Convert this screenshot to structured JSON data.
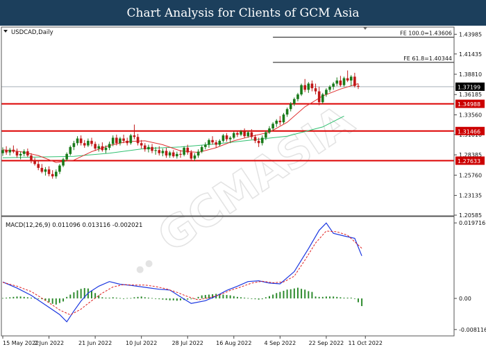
{
  "header": {
    "title": "Chart Analysis for Clients of GCM Asia"
  },
  "colors": {
    "header_bg": "#1c3f5c",
    "bull": "#1a7a1a",
    "bear": "#c01818",
    "ma_fast": "#e03030",
    "ma_slow": "#30c070",
    "sr_line": "#dd0000",
    "macd_line": "#1a36e0",
    "macd_signal": "#e02020",
    "macd_hist": "#2e8b2e",
    "price_label_bg": "#000000",
    "level_label_bg": "#cc0000"
  },
  "chart_data": [
    {
      "type": "candlestick",
      "symbol_label": "USDCAD,Daily",
      "x_labels": [
        "15 May 2022",
        "2 Jun 2022",
        "21 Jun 2022",
        "10 Jul 2022",
        "28 Jul 2022",
        "16 Aug 2022",
        "4 Sep 2022",
        "22 Sep 2022",
        "11 Oct 2022"
      ],
      "y_ticks": [
        "1.43985",
        "1.41435",
        "1.38810",
        "1.36185",
        "1.33560",
        "1.31010",
        "1.28385",
        "1.25760",
        "1.23135",
        "1.20585"
      ],
      "ylim": [
        1.20585,
        1.44825
      ],
      "current_price": "1.37199",
      "fibonacci": [
        {
          "label": "FE 100.0=1.43606",
          "value": 1.43606
        },
        {
          "label": "FE 61.8=1.40344",
          "value": 1.40344
        }
      ],
      "levels": [
        {
          "label": "1.34988",
          "value": 1.34988
        },
        {
          "label": "1.31466",
          "value": 1.31466
        },
        {
          "label": "1.27633",
          "value": 1.27633
        }
      ],
      "candles": [
        [
          1.286,
          1.2935,
          1.2825,
          1.29
        ],
        [
          1.29,
          1.295,
          1.284,
          1.287
        ],
        [
          1.287,
          1.293,
          1.283,
          1.2905
        ],
        [
          1.2905,
          1.296,
          1.286,
          1.288
        ],
        [
          1.288,
          1.292,
          1.28,
          1.283
        ],
        [
          1.283,
          1.288,
          1.278,
          1.285
        ],
        [
          1.285,
          1.291,
          1.282,
          1.2885
        ],
        [
          1.2885,
          1.292,
          1.281,
          1.283
        ],
        [
          1.283,
          1.286,
          1.273,
          1.276
        ],
        [
          1.276,
          1.28,
          1.27,
          1.272
        ],
        [
          1.272,
          1.276,
          1.264,
          1.267
        ],
        [
          1.267,
          1.272,
          1.26,
          1.262
        ],
        [
          1.262,
          1.268,
          1.257,
          1.265
        ],
        [
          1.265,
          1.269,
          1.256,
          1.259
        ],
        [
          1.259,
          1.264,
          1.253,
          1.256
        ],
        [
          1.256,
          1.265,
          1.253,
          1.262
        ],
        [
          1.262,
          1.272,
          1.259,
          1.27
        ],
        [
          1.27,
          1.28,
          1.268,
          1.278
        ],
        [
          1.278,
          1.287,
          1.276,
          1.285
        ],
        [
          1.285,
          1.296,
          1.283,
          1.294
        ],
        [
          1.294,
          1.302,
          1.29,
          1.299
        ],
        [
          1.299,
          1.308,
          1.296,
          1.305
        ],
        [
          1.305,
          1.309,
          1.296,
          1.299
        ],
        [
          1.299,
          1.303,
          1.293,
          1.296
        ],
        [
          1.296,
          1.305,
          1.294,
          1.302
        ],
        [
          1.302,
          1.306,
          1.295,
          1.298
        ],
        [
          1.298,
          1.301,
          1.289,
          1.292
        ],
        [
          1.292,
          1.298,
          1.288,
          1.295
        ],
        [
          1.295,
          1.3,
          1.288,
          1.29
        ],
        [
          1.29,
          1.296,
          1.286,
          1.293
        ],
        [
          1.293,
          1.301,
          1.29,
          1.298
        ],
        [
          1.298,
          1.309,
          1.295,
          1.306
        ],
        [
          1.306,
          1.31,
          1.296,
          1.299
        ],
        [
          1.299,
          1.307,
          1.296,
          1.305
        ],
        [
          1.305,
          1.31,
          1.299,
          1.302
        ],
        [
          1.302,
          1.306,
          1.296,
          1.299
        ],
        [
          1.299,
          1.311,
          1.297,
          1.309
        ],
        [
          1.309,
          1.323,
          1.304,
          1.307
        ],
        [
          1.307,
          1.311,
          1.296,
          1.299
        ],
        [
          1.299,
          1.303,
          1.292,
          1.296
        ],
        [
          1.296,
          1.299,
          1.288,
          1.291
        ],
        [
          1.291,
          1.297,
          1.287,
          1.294
        ],
        [
          1.294,
          1.298,
          1.286,
          1.289
        ],
        [
          1.289,
          1.294,
          1.284,
          1.29
        ],
        [
          1.29,
          1.295,
          1.283,
          1.286
        ],
        [
          1.286,
          1.292,
          1.282,
          1.289
        ],
        [
          1.289,
          1.293,
          1.28,
          1.283
        ],
        [
          1.283,
          1.289,
          1.28,
          1.287
        ],
        [
          1.287,
          1.29,
          1.28,
          1.282
        ],
        [
          1.282,
          1.288,
          1.279,
          1.285
        ],
        [
          1.285,
          1.29,
          1.28,
          1.284
        ],
        [
          1.284,
          1.295,
          1.282,
          1.293
        ],
        [
          1.293,
          1.297,
          1.284,
          1.287
        ],
        [
          1.287,
          1.29,
          1.276,
          1.279
        ],
        [
          1.279,
          1.286,
          1.276,
          1.283
        ],
        [
          1.283,
          1.291,
          1.28,
          1.288
        ],
        [
          1.288,
          1.296,
          1.286,
          1.294
        ],
        [
          1.294,
          1.3,
          1.291,
          1.297
        ],
        [
          1.297,
          1.305,
          1.293,
          1.303
        ],
        [
          1.303,
          1.308,
          1.297,
          1.3
        ],
        [
          1.3,
          1.303,
          1.293,
          1.297
        ],
        [
          1.297,
          1.304,
          1.295,
          1.302
        ],
        [
          1.302,
          1.311,
          1.3,
          1.309
        ],
        [
          1.309,
          1.312,
          1.301,
          1.304
        ],
        [
          1.304,
          1.308,
          1.299,
          1.306
        ],
        [
          1.306,
          1.314,
          1.304,
          1.312
        ],
        [
          1.312,
          1.315,
          1.307,
          1.31
        ],
        [
          1.31,
          1.316,
          1.308,
          1.314
        ],
        [
          1.314,
          1.318,
          1.306,
          1.308
        ],
        [
          1.308,
          1.315,
          1.306,
          1.313
        ],
        [
          1.313,
          1.317,
          1.304,
          1.307
        ],
        [
          1.307,
          1.31,
          1.299,
          1.302
        ],
        [
          1.302,
          1.306,
          1.294,
          1.299
        ],
        [
          1.299,
          1.309,
          1.296,
          1.306
        ],
        [
          1.306,
          1.315,
          1.303,
          1.313
        ],
        [
          1.313,
          1.321,
          1.311,
          1.318
        ],
        [
          1.318,
          1.326,
          1.315,
          1.324
        ],
        [
          1.324,
          1.33,
          1.32,
          1.328
        ],
        [
          1.328,
          1.334,
          1.322,
          1.326
        ],
        [
          1.326,
          1.338,
          1.324,
          1.336
        ],
        [
          1.336,
          1.345,
          1.333,
          1.343
        ],
        [
          1.343,
          1.352,
          1.34,
          1.35
        ],
        [
          1.35,
          1.358,
          1.347,
          1.356
        ],
        [
          1.356,
          1.364,
          1.353,
          1.362
        ],
        [
          1.362,
          1.376,
          1.36,
          1.374
        ],
        [
          1.374,
          1.382,
          1.365,
          1.368
        ],
        [
          1.368,
          1.378,
          1.364,
          1.376
        ],
        [
          1.376,
          1.38,
          1.366,
          1.37
        ],
        [
          1.37,
          1.376,
          1.362,
          1.366
        ],
        [
          1.366,
          1.372,
          1.348,
          1.352
        ],
        [
          1.352,
          1.364,
          1.35,
          1.362
        ],
        [
          1.362,
          1.37,
          1.359,
          1.368
        ],
        [
          1.368,
          1.374,
          1.365,
          1.372
        ],
        [
          1.372,
          1.378,
          1.368,
          1.376
        ],
        [
          1.376,
          1.384,
          1.373,
          1.38
        ],
        [
          1.38,
          1.386,
          1.372,
          1.374
        ],
        [
          1.374,
          1.385,
          1.372,
          1.383
        ],
        [
          1.383,
          1.393,
          1.378,
          1.38
        ],
        [
          1.38,
          1.387,
          1.373,
          1.385
        ],
        [
          1.385,
          1.39,
          1.371,
          1.373
        ],
        [
          1.373,
          1.376,
          1.369,
          1.372
        ]
      ],
      "ma_fast": [
        [
          0,
          1.2905
        ],
        [
          5,
          1.288
        ],
        [
          10,
          1.283
        ],
        [
          15,
          1.274
        ],
        [
          20,
          1.277
        ],
        [
          25,
          1.288
        ],
        [
          30,
          1.296
        ],
        [
          35,
          1.301
        ],
        [
          40,
          1.302
        ],
        [
          45,
          1.297
        ],
        [
          50,
          1.289
        ],
        [
          55,
          1.287
        ],
        [
          60,
          1.293
        ],
        [
          65,
          1.302
        ],
        [
          70,
          1.308
        ],
        [
          75,
          1.313
        ],
        [
          80,
          1.326
        ],
        [
          85,
          1.346
        ],
        [
          90,
          1.36
        ],
        [
          95,
          1.369
        ],
        [
          100,
          1.376
        ]
      ],
      "ma_slow": [
        [
          0,
          1.28
        ],
        [
          10,
          1.281
        ],
        [
          20,
          1.282
        ],
        [
          30,
          1.286
        ],
        [
          40,
          1.292
        ],
        [
          50,
          1.294
        ],
        [
          60,
          1.298
        ],
        [
          70,
          1.303
        ],
        [
          80,
          1.308
        ],
        [
          90,
          1.32
        ],
        [
          96,
          1.334
        ]
      ]
    },
    {
      "type": "macd",
      "label": "MACD(12,26,9) 0.011096 0.013116 -0.002021",
      "y_ticks": [
        "0.019716",
        "0.00",
        "-0.008116"
      ],
      "ylim": [
        -0.0096,
        0.0212
      ],
      "macd": [
        [
          0,
          0.0043
        ],
        [
          4,
          0.0027
        ],
        [
          8,
          0.0008
        ],
        [
          12,
          -0.0017
        ],
        [
          16,
          -0.0042
        ],
        [
          18,
          -0.0061
        ],
        [
          20,
          -0.0033
        ],
        [
          22,
          -0.0007
        ],
        [
          24,
          0.0014
        ],
        [
          27,
          0.0032
        ],
        [
          30,
          0.0044
        ],
        [
          33,
          0.0037
        ],
        [
          36,
          0.0034
        ],
        [
          40,
          0.0029
        ],
        [
          44,
          0.0024
        ],
        [
          47,
          0.0022
        ],
        [
          50,
          0.0004
        ],
        [
          53,
          -0.0013
        ],
        [
          57,
          -0.0006
        ],
        [
          60,
          0.0006
        ],
        [
          63,
          0.0021
        ],
        [
          66,
          0.0032
        ],
        [
          69,
          0.0044
        ],
        [
          72,
          0.0046
        ],
        [
          75,
          0.004
        ],
        [
          78,
          0.0038
        ],
        [
          82,
          0.007
        ],
        [
          86,
          0.013
        ],
        [
          89,
          0.0178
        ],
        [
          91,
          0.0197
        ],
        [
          93,
          0.017
        ],
        [
          96,
          0.0163
        ],
        [
          99,
          0.0157
        ],
        [
          101,
          0.0111
        ]
      ],
      "signal": [
        [
          0,
          0.0042
        ],
        [
          4,
          0.0032
        ],
        [
          8,
          0.0018
        ],
        [
          12,
          -0.0005
        ],
        [
          16,
          -0.003
        ],
        [
          19,
          -0.0043
        ],
        [
          22,
          -0.0028
        ],
        [
          25,
          -0.0006
        ],
        [
          28,
          0.0014
        ],
        [
          31,
          0.003
        ],
        [
          34,
          0.0036
        ],
        [
          37,
          0.0035
        ],
        [
          40,
          0.0035
        ],
        [
          43,
          0.0031
        ],
        [
          46,
          0.0025
        ],
        [
          49,
          0.0016
        ],
        [
          52,
          0.0005
        ],
        [
          55,
          -0.0004
        ],
        [
          58,
          0.0002
        ],
        [
          61,
          0.0009
        ],
        [
          64,
          0.0021
        ],
        [
          67,
          0.003
        ],
        [
          70,
          0.004
        ],
        [
          73,
          0.0045
        ],
        [
          76,
          0.0041
        ],
        [
          79,
          0.0043
        ],
        [
          82,
          0.0058
        ],
        [
          85,
          0.01
        ],
        [
          88,
          0.0145
        ],
        [
          91,
          0.0176
        ],
        [
          94,
          0.0174
        ],
        [
          97,
          0.0165
        ],
        [
          101,
          0.0131
        ]
      ],
      "histogram": [
        0.0001,
        0.0002,
        0.0003,
        0.0004,
        0.0005,
        0.0005,
        0.0004,
        0.0003,
        0.0002,
        0.0001,
        -0.0001,
        -0.0002,
        -0.0006,
        -0.001,
        -0.0014,
        -0.0016,
        -0.0012,
        -0.0008,
        0.0004,
        0.001,
        0.0016,
        0.0021,
        0.0025,
        0.0027,
        0.0026,
        0.002,
        0.0014,
        0.0008,
        0.0003,
        0.0002,
        0.0002,
        0.0003,
        0.0002,
        0.0001,
        -0.0001,
        0.0001,
        0.0001,
        0.0003,
        0.0004,
        0.0005,
        0.0003,
        0.0002,
        0.0001,
        -0.0001,
        -0.0002,
        -0.0003,
        -0.0004,
        -0.0005,
        -0.0005,
        -0.0006,
        -0.0005,
        -0.0004,
        -0.0003,
        -0.0002,
        -0.0001,
        0.0004,
        0.0008,
        0.0009,
        0.001,
        0.0011,
        0.0012,
        0.0011,
        0.001,
        0.0009,
        0.0008,
        0.0006,
        0.0004,
        0.0003,
        0.0002,
        0.0001,
        -0.0001,
        -0.0002,
        -0.0003,
        -0.0002,
        0.0003,
        0.0006,
        0.001,
        0.0014,
        0.0017,
        0.002,
        0.0023,
        0.0024,
        0.0026,
        0.0028,
        0.0025,
        0.0023,
        0.0019,
        0.0017,
        0.0005,
        0.0004,
        0.0004,
        0.0005,
        0.0005,
        0.0005,
        0.0004,
        0.0003,
        0.0002,
        0.0002,
        0.0002,
        -0.0001,
        -0.001,
        -0.002
      ]
    }
  ]
}
